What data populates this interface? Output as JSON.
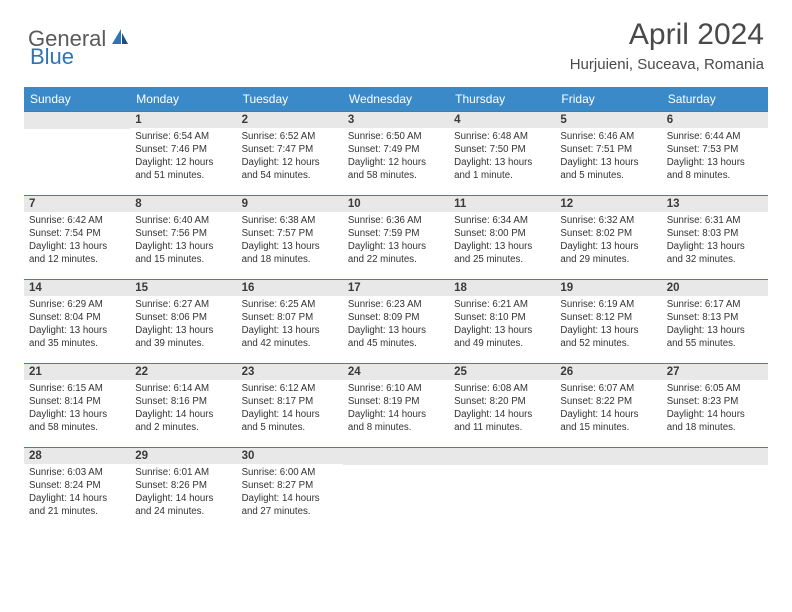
{
  "brand": {
    "part1": "General",
    "part2": "Blue"
  },
  "title": "April 2024",
  "location": "Hurjuieni, Suceava, Romania",
  "colors": {
    "header_bg": "#3a8ac9",
    "header_text": "#ffffff",
    "daynum_bg": "#e8e8e8",
    "daynum_border": "#4a7aa5",
    "body_text": "#333333",
    "title_text": "#4a4a4a",
    "logo_gray": "#5a5a5a",
    "logo_blue": "#2f74b5"
  },
  "weekdays": [
    "Sunday",
    "Monday",
    "Tuesday",
    "Wednesday",
    "Thursday",
    "Friday",
    "Saturday"
  ],
  "weeks": [
    [
      {
        "day": "",
        "lines": []
      },
      {
        "day": "1",
        "lines": [
          "Sunrise: 6:54 AM",
          "Sunset: 7:46 PM",
          "Daylight: 12 hours",
          "and 51 minutes."
        ]
      },
      {
        "day": "2",
        "lines": [
          "Sunrise: 6:52 AM",
          "Sunset: 7:47 PM",
          "Daylight: 12 hours",
          "and 54 minutes."
        ]
      },
      {
        "day": "3",
        "lines": [
          "Sunrise: 6:50 AM",
          "Sunset: 7:49 PM",
          "Daylight: 12 hours",
          "and 58 minutes."
        ]
      },
      {
        "day": "4",
        "lines": [
          "Sunrise: 6:48 AM",
          "Sunset: 7:50 PM",
          "Daylight: 13 hours",
          "and 1 minute."
        ]
      },
      {
        "day": "5",
        "lines": [
          "Sunrise: 6:46 AM",
          "Sunset: 7:51 PM",
          "Daylight: 13 hours",
          "and 5 minutes."
        ]
      },
      {
        "day": "6",
        "lines": [
          "Sunrise: 6:44 AM",
          "Sunset: 7:53 PM",
          "Daylight: 13 hours",
          "and 8 minutes."
        ]
      }
    ],
    [
      {
        "day": "7",
        "lines": [
          "Sunrise: 6:42 AM",
          "Sunset: 7:54 PM",
          "Daylight: 13 hours",
          "and 12 minutes."
        ]
      },
      {
        "day": "8",
        "lines": [
          "Sunrise: 6:40 AM",
          "Sunset: 7:56 PM",
          "Daylight: 13 hours",
          "and 15 minutes."
        ]
      },
      {
        "day": "9",
        "lines": [
          "Sunrise: 6:38 AM",
          "Sunset: 7:57 PM",
          "Daylight: 13 hours",
          "and 18 minutes."
        ]
      },
      {
        "day": "10",
        "lines": [
          "Sunrise: 6:36 AM",
          "Sunset: 7:59 PM",
          "Daylight: 13 hours",
          "and 22 minutes."
        ]
      },
      {
        "day": "11",
        "lines": [
          "Sunrise: 6:34 AM",
          "Sunset: 8:00 PM",
          "Daylight: 13 hours",
          "and 25 minutes."
        ]
      },
      {
        "day": "12",
        "lines": [
          "Sunrise: 6:32 AM",
          "Sunset: 8:02 PM",
          "Daylight: 13 hours",
          "and 29 minutes."
        ]
      },
      {
        "day": "13",
        "lines": [
          "Sunrise: 6:31 AM",
          "Sunset: 8:03 PM",
          "Daylight: 13 hours",
          "and 32 minutes."
        ]
      }
    ],
    [
      {
        "day": "14",
        "lines": [
          "Sunrise: 6:29 AM",
          "Sunset: 8:04 PM",
          "Daylight: 13 hours",
          "and 35 minutes."
        ]
      },
      {
        "day": "15",
        "lines": [
          "Sunrise: 6:27 AM",
          "Sunset: 8:06 PM",
          "Daylight: 13 hours",
          "and 39 minutes."
        ]
      },
      {
        "day": "16",
        "lines": [
          "Sunrise: 6:25 AM",
          "Sunset: 8:07 PM",
          "Daylight: 13 hours",
          "and 42 minutes."
        ]
      },
      {
        "day": "17",
        "lines": [
          "Sunrise: 6:23 AM",
          "Sunset: 8:09 PM",
          "Daylight: 13 hours",
          "and 45 minutes."
        ]
      },
      {
        "day": "18",
        "lines": [
          "Sunrise: 6:21 AM",
          "Sunset: 8:10 PM",
          "Daylight: 13 hours",
          "and 49 minutes."
        ]
      },
      {
        "day": "19",
        "lines": [
          "Sunrise: 6:19 AM",
          "Sunset: 8:12 PM",
          "Daylight: 13 hours",
          "and 52 minutes."
        ]
      },
      {
        "day": "20",
        "lines": [
          "Sunrise: 6:17 AM",
          "Sunset: 8:13 PM",
          "Daylight: 13 hours",
          "and 55 minutes."
        ]
      }
    ],
    [
      {
        "day": "21",
        "lines": [
          "Sunrise: 6:15 AM",
          "Sunset: 8:14 PM",
          "Daylight: 13 hours",
          "and 58 minutes."
        ]
      },
      {
        "day": "22",
        "lines": [
          "Sunrise: 6:14 AM",
          "Sunset: 8:16 PM",
          "Daylight: 14 hours",
          "and 2 minutes."
        ]
      },
      {
        "day": "23",
        "lines": [
          "Sunrise: 6:12 AM",
          "Sunset: 8:17 PM",
          "Daylight: 14 hours",
          "and 5 minutes."
        ]
      },
      {
        "day": "24",
        "lines": [
          "Sunrise: 6:10 AM",
          "Sunset: 8:19 PM",
          "Daylight: 14 hours",
          "and 8 minutes."
        ]
      },
      {
        "day": "25",
        "lines": [
          "Sunrise: 6:08 AM",
          "Sunset: 8:20 PM",
          "Daylight: 14 hours",
          "and 11 minutes."
        ]
      },
      {
        "day": "26",
        "lines": [
          "Sunrise: 6:07 AM",
          "Sunset: 8:22 PM",
          "Daylight: 14 hours",
          "and 15 minutes."
        ]
      },
      {
        "day": "27",
        "lines": [
          "Sunrise: 6:05 AM",
          "Sunset: 8:23 PM",
          "Daylight: 14 hours",
          "and 18 minutes."
        ]
      }
    ],
    [
      {
        "day": "28",
        "lines": [
          "Sunrise: 6:03 AM",
          "Sunset: 8:24 PM",
          "Daylight: 14 hours",
          "and 21 minutes."
        ]
      },
      {
        "day": "29",
        "lines": [
          "Sunrise: 6:01 AM",
          "Sunset: 8:26 PM",
          "Daylight: 14 hours",
          "and 24 minutes."
        ]
      },
      {
        "day": "30",
        "lines": [
          "Sunrise: 6:00 AM",
          "Sunset: 8:27 PM",
          "Daylight: 14 hours",
          "and 27 minutes."
        ]
      },
      {
        "day": "",
        "lines": []
      },
      {
        "day": "",
        "lines": []
      },
      {
        "day": "",
        "lines": []
      },
      {
        "day": "",
        "lines": []
      }
    ]
  ]
}
